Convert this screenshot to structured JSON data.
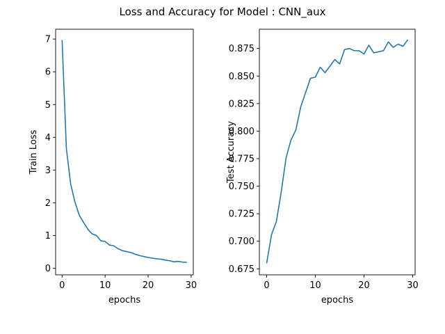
{
  "figure": {
    "suptitle": "Loss and Accuracy for Model : CNN_aux"
  },
  "chart_data": [
    {
      "type": "line",
      "title": "",
      "xlabel": "epochs",
      "ylabel": "Train Loss",
      "xlim": [
        -1.5,
        30.5
      ],
      "ylim": [
        -0.2,
        7.3
      ],
      "x_ticks": [
        0,
        10,
        20,
        30
      ],
      "y_ticks": [
        0,
        1,
        2,
        3,
        4,
        5,
        6,
        7
      ],
      "grid": false,
      "line_color": "#1f77b4",
      "series": [
        {
          "x": [
            0,
            1,
            2,
            3,
            4,
            5,
            6,
            7,
            8,
            9,
            10,
            11,
            12,
            13,
            14,
            15,
            16,
            17,
            18,
            19,
            20,
            21,
            22,
            23,
            24,
            25,
            26,
            27,
            28,
            29
          ],
          "values": [
            6.97,
            3.65,
            2.57,
            2.02,
            1.62,
            1.4,
            1.19,
            1.05,
            1.0,
            0.84,
            0.82,
            0.71,
            0.69,
            0.6,
            0.54,
            0.51,
            0.48,
            0.43,
            0.39,
            0.36,
            0.33,
            0.31,
            0.29,
            0.28,
            0.25,
            0.23,
            0.2,
            0.21,
            0.19,
            0.18
          ]
        }
      ]
    },
    {
      "type": "line",
      "title": "",
      "xlabel": "epochs",
      "ylabel": "Test Accuracy",
      "xlim": [
        -1.5,
        30.5
      ],
      "ylim": [
        0.6695,
        0.8925
      ],
      "x_ticks": [
        0,
        10,
        20,
        30
      ],
      "y_ticks": [
        0.675,
        0.7,
        0.725,
        0.75,
        0.775,
        0.8,
        0.825,
        0.85,
        0.875
      ],
      "y_tick_labels": [
        "0.675",
        "0.700",
        "0.725",
        "0.750",
        "0.775",
        "0.800",
        "0.825",
        "0.850",
        "0.875"
      ],
      "grid": false,
      "line_color": "#1f77b4",
      "series": [
        {
          "x": [
            0,
            1,
            2,
            3,
            4,
            5,
            6,
            7,
            8,
            9,
            10,
            11,
            12,
            13,
            14,
            15,
            16,
            17,
            18,
            19,
            20,
            21,
            22,
            23,
            24,
            25,
            26,
            27,
            28,
            29
          ],
          "values": [
            0.68,
            0.706,
            0.718,
            0.745,
            0.776,
            0.792,
            0.801,
            0.822,
            0.835,
            0.848,
            0.849,
            0.858,
            0.853,
            0.859,
            0.865,
            0.861,
            0.874,
            0.875,
            0.873,
            0.873,
            0.87,
            0.878,
            0.871,
            0.872,
            0.873,
            0.881,
            0.876,
            0.879,
            0.877,
            0.883
          ]
        }
      ]
    }
  ]
}
